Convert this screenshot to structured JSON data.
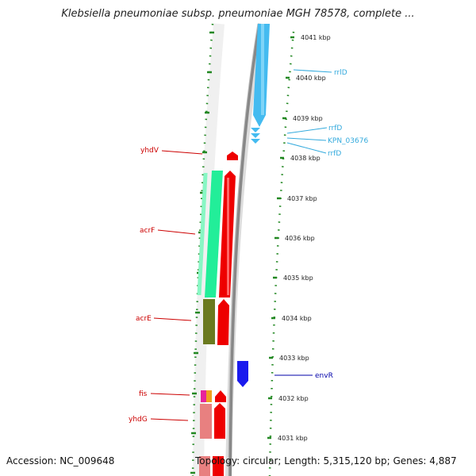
{
  "header": {
    "title": "Klebsiella pneumoniae subsp. pneumoniae MGH 78578, complete ..."
  },
  "footer": {
    "accession": "Accession: NC_009648",
    "summary": "Topology: circular; Length: 5,315,120 bp; Genes: 4,887"
  },
  "ticks": [
    {
      "label": "4041 kbp"
    },
    {
      "label": "4040 kbp"
    },
    {
      "label": "4039 kbp"
    },
    {
      "label": "4038 kbp"
    },
    {
      "label": "4037 kbp"
    },
    {
      "label": "4036 kbp"
    },
    {
      "label": "4035 kbp"
    },
    {
      "label": "4034 kbp"
    },
    {
      "label": "4033 kbp"
    },
    {
      "label": "4032 kbp"
    },
    {
      "label": "4031 kbp"
    }
  ],
  "genes_left": [
    {
      "name": "yhdV",
      "color": "#cc0000"
    },
    {
      "name": "acrF",
      "color": "#cc0000"
    },
    {
      "name": "acrE",
      "color": "#cc0000"
    },
    {
      "name": "fis",
      "color": "#cc0000"
    },
    {
      "name": "yhdG",
      "color": "#cc0000"
    }
  ],
  "genes_right": [
    {
      "name": "rrlD",
      "color": "#33aadd"
    },
    {
      "name": "rrfD",
      "color": "#33aadd"
    },
    {
      "name": "KPN_03676",
      "color": "#33aadd"
    },
    {
      "name": "rrfD",
      "color": "#33aadd"
    },
    {
      "name": "envR",
      "color": "#0000aa"
    }
  ],
  "colors": {
    "backbone": "#888888",
    "tick_green": "#228822",
    "cds_red": "#ee0000",
    "rrna_blue": "#44bbf0",
    "envr_blue": "#1a1aee",
    "acrf_green": "#22ee99",
    "acre_olive": "#6b7a1f",
    "pink": "#e88080"
  }
}
